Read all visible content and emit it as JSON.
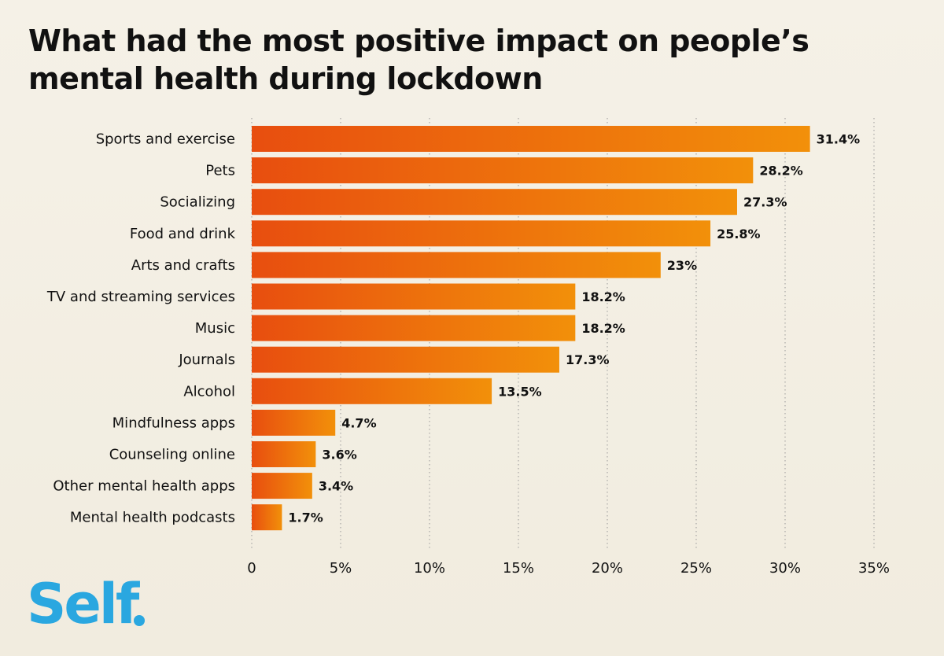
{
  "chart_data": {
    "type": "bar",
    "orientation": "horizontal",
    "title": "What had the most positive impact on people’s mental health during lockdown",
    "title_lines": [
      "What had the most positive impact on people’s",
      "mental health during lockdown"
    ],
    "categories": [
      "Sports and exercise",
      "Pets",
      "Socializing",
      "Food and drink",
      "Arts and crafts",
      "TV and streaming services",
      "Music",
      "Journals",
      "Alcohol",
      "Mindfulness apps",
      "Counseling online",
      "Other mental health apps",
      "Mental health podcasts"
    ],
    "values": [
      31.4,
      28.2,
      27.3,
      25.8,
      23,
      18.2,
      18.2,
      17.3,
      13.5,
      4.7,
      3.6,
      3.4,
      1.7
    ],
    "value_labels": [
      "31.4%",
      "28.2%",
      "27.3%",
      "25.8%",
      "23%",
      "18.2%",
      "18.2%",
      "17.3%",
      "13.5%",
      "4.7%",
      "3.6%",
      "3.4%",
      "1.7%"
    ],
    "xlim": [
      0,
      35
    ],
    "xticks": [
      0,
      5,
      10,
      15,
      20,
      25,
      30,
      35
    ],
    "xtick_labels": [
      "0",
      "5%",
      "10%",
      "15%",
      "20%",
      "25%",
      "30%",
      "35%"
    ],
    "xlabel": "",
    "ylabel": "",
    "grid": "vertical dotted",
    "colors": {
      "bar_start": "#e84e0f",
      "bar_end": "#f2900a",
      "grid": "#999999"
    }
  },
  "logo": {
    "text": "Self",
    "color": "#2aa7e0"
  }
}
